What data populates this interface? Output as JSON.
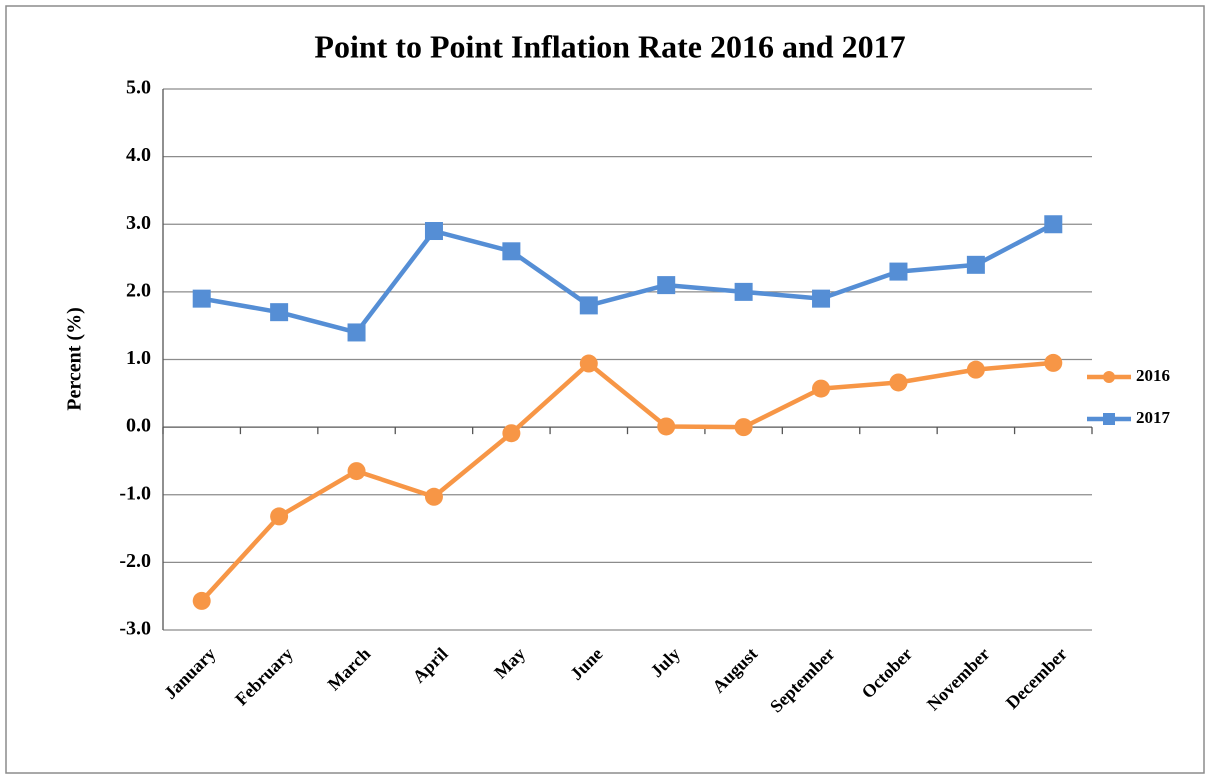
{
  "chart_data": {
    "type": "line",
    "title": "Point to Point Inflation Rate 2016 and 2017",
    "y_label": "Percent (%)",
    "categories": [
      "January",
      "February",
      "March",
      "April",
      "May",
      "June",
      "July",
      "August",
      "September",
      "October",
      "November",
      "December"
    ],
    "series": [
      {
        "name": "2016",
        "color": "#f79646",
        "marker": "circle",
        "values": [
          -2.57,
          -1.32,
          -0.65,
          -1.03,
          -0.09,
          0.94,
          0.01,
          0.0,
          0.57,
          0.66,
          0.85,
          0.95
        ]
      },
      {
        "name": "2017",
        "color": "#558ed5",
        "marker": "square",
        "values": [
          1.9,
          1.7,
          1.4,
          2.9,
          2.6,
          1.8,
          2.1,
          2.0,
          1.9,
          2.3,
          2.4,
          3.0
        ]
      }
    ],
    "ylim": [
      -3,
      5
    ],
    "yticks": [
      {
        "value": -3,
        "label": "-3.0"
      },
      {
        "value": -2,
        "label": "-2.0"
      },
      {
        "value": -1,
        "label": "-1.0"
      },
      {
        "value": 0,
        "label": "0.0"
      },
      {
        "value": 1,
        "label": "1.0"
      },
      {
        "value": 2,
        "label": "2.0"
      },
      {
        "value": 3,
        "label": "3.0"
      },
      {
        "value": 4,
        "label": "4.0"
      },
      {
        "value": 5,
        "label": "5.0"
      }
    ],
    "grid": true,
    "legend": "right"
  }
}
